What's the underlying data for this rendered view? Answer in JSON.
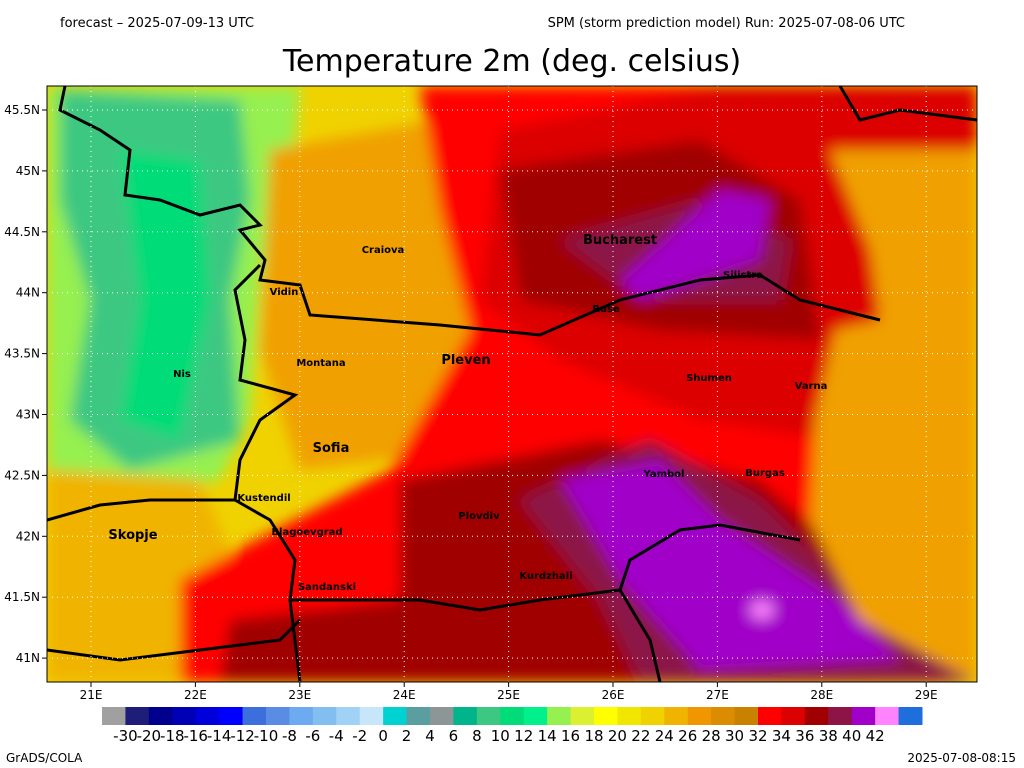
{
  "header": {
    "forecast": "forecast – 2025-07-09-13 UTC",
    "run": "SPM (storm prediction model) Run: 2025-07-08-06 UTC"
  },
  "title": "Temperature 2m (deg. celsius)",
  "map": {
    "lon_labels": [
      "21E",
      "22E",
      "23E",
      "24E",
      "25E",
      "26E",
      "27E",
      "28E",
      "29E"
    ],
    "lat_labels": [
      "45.5N",
      "45N",
      "44.5N",
      "44N",
      "43.5N",
      "43N",
      "42.5N",
      "42N",
      "41.5N",
      "41N"
    ],
    "cities": [
      "Bucharest",
      "Craiova",
      "Vidin",
      "Ruse",
      "Silistra",
      "Pleven",
      "Montana",
      "Nis",
      "Shumen",
      "Varna",
      "Sofia",
      "Yambol",
      "Burgas",
      "Kustendil",
      "Plovdiv",
      "Skopje",
      "Blagoevgrad",
      "Kurdzhali",
      "Sandanski"
    ]
  },
  "colorbar": {
    "labels": [
      -30,
      -20,
      -18,
      -16,
      -14,
      -12,
      -10,
      -8,
      -6,
      -4,
      -2,
      0,
      2,
      4,
      6,
      8,
      10,
      12,
      14,
      16,
      18,
      20,
      22,
      24,
      26,
      28,
      30,
      32,
      34,
      36,
      38,
      40,
      42
    ],
    "colors": [
      "#a0a0a0",
      "#1e1e78",
      "#00008c",
      "#0000b4",
      "#0000dc",
      "#0000ff",
      "#3c6edc",
      "#5a8ce6",
      "#6eaaf0",
      "#82bef0",
      "#a0d2f5",
      "#c8e6fa",
      "#00d2d2",
      "#5a9ea0",
      "#8c9696",
      "#00b48c",
      "#3cc882",
      "#00dc78",
      "#00f08c",
      "#96f050",
      "#dcf032",
      "#ffff00",
      "#f0e600",
      "#f0d200",
      "#f0b400",
      "#f09600",
      "#dc8c00",
      "#c88200",
      "#ff0000",
      "#dc0000",
      "#a00000",
      "#8c1446",
      "#a000c8",
      "#ff82ff",
      "#1e6edc"
    ]
  },
  "footer": {
    "left": "GrADS/COLA",
    "right": "2025-07-08-08:15"
  }
}
